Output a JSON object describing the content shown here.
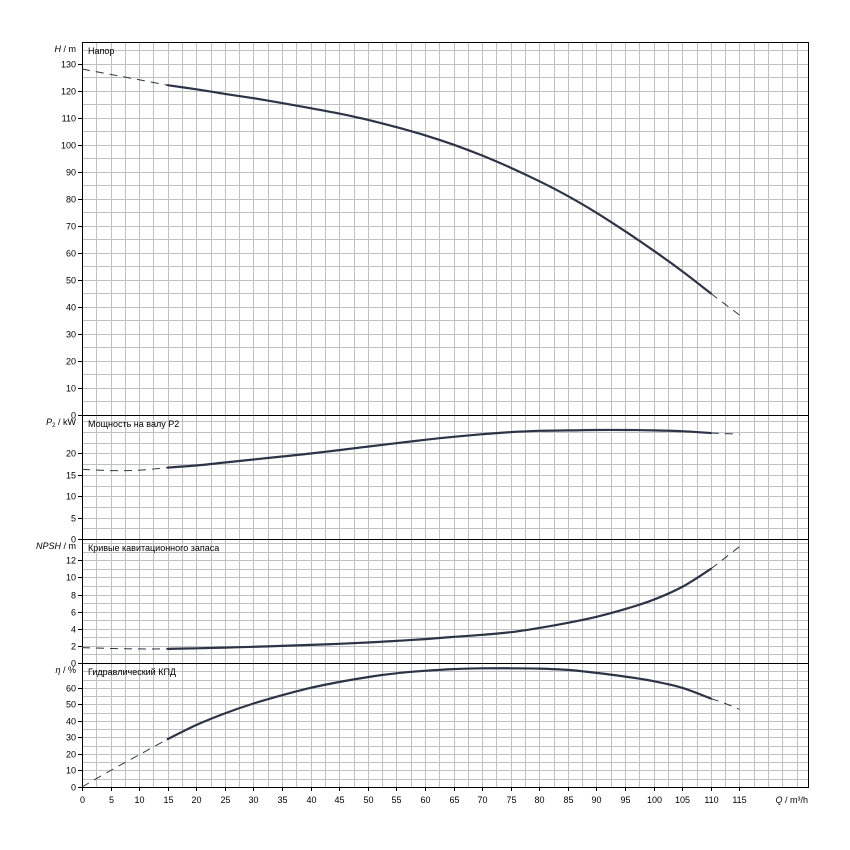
{
  "chart_data": [
    {
      "type": "line",
      "panel": "head",
      "title": "Напор",
      "ylabel_var": "H",
      "ylabel_unit": "m",
      "ylim": [
        0,
        138
      ],
      "yticks": [
        0,
        10,
        20,
        30,
        40,
        50,
        60,
        70,
        80,
        90,
        100,
        110,
        120,
        130
      ],
      "xlim": [
        0,
        127
      ],
      "series": [
        {
          "style": "solid",
          "x": [
            15,
            20,
            25,
            30,
            35,
            40,
            45,
            50,
            55,
            60,
            65,
            70,
            75,
            80,
            85,
            90,
            95,
            100,
            105,
            110
          ],
          "y": [
            122,
            120.5,
            118.8,
            117.2,
            115.4,
            113.5,
            111.5,
            109.2,
            106.5,
            103.5,
            100,
            96,
            91.5,
            86.5,
            81,
            74.8,
            68,
            60.8,
            53.2,
            45
          ]
        },
        {
          "style": "dashed",
          "x": [
            0,
            5,
            10,
            15
          ],
          "y": [
            128,
            126,
            124,
            122
          ]
        },
        {
          "style": "dashed",
          "x": [
            110,
            112.5,
            115
          ],
          "y": [
            45,
            41,
            37
          ]
        }
      ]
    },
    {
      "type": "line",
      "panel": "power",
      "title": "Мощность на валу P2",
      "ylabel_var": "P",
      "ylabel_sub": "2",
      "ylabel_unit": "kW",
      "ylim": [
        0,
        29
      ],
      "yticks": [
        0,
        5,
        10,
        15,
        20
      ],
      "xlim": [
        0,
        127
      ],
      "series": [
        {
          "style": "solid",
          "x": [
            15,
            20,
            25,
            30,
            35,
            40,
            45,
            50,
            55,
            60,
            65,
            70,
            75,
            80,
            85,
            90,
            95,
            100,
            105,
            110
          ],
          "y": [
            16.7,
            17.2,
            17.9,
            18.6,
            19.3,
            20,
            20.8,
            21.6,
            22.4,
            23.2,
            23.9,
            24.5,
            25,
            25.3,
            25.4,
            25.5,
            25.5,
            25.4,
            25.2,
            24.8
          ]
        },
        {
          "style": "dashed",
          "x": [
            0,
            5,
            10,
            15
          ],
          "y": [
            16.3,
            16,
            16.1,
            16.7
          ]
        },
        {
          "style": "dashed",
          "x": [
            110,
            115
          ],
          "y": [
            24.8,
            24.5
          ]
        }
      ]
    },
    {
      "type": "line",
      "panel": "npsh",
      "title": "Кривые кавитационного запаса",
      "ylabel_var": "NPSH",
      "ylabel_unit": "m",
      "ylim": [
        0,
        14.5
      ],
      "yticks": [
        0,
        2,
        4,
        6,
        8,
        10,
        12
      ],
      "xlim": [
        0,
        127
      ],
      "series": [
        {
          "style": "solid",
          "x": [
            15,
            20,
            25,
            30,
            35,
            40,
            45,
            50,
            55,
            60,
            65,
            70,
            75,
            80,
            85,
            90,
            95,
            100,
            105,
            110
          ],
          "y": [
            1.65,
            1.72,
            1.8,
            1.9,
            2,
            2.12,
            2.25,
            2.4,
            2.58,
            2.8,
            3.05,
            3.3,
            3.6,
            4.1,
            4.7,
            5.4,
            6.3,
            7.4,
            8.9,
            11
          ]
        },
        {
          "style": "dashed",
          "x": [
            0,
            5,
            10,
            15
          ],
          "y": [
            1.8,
            1.7,
            1.65,
            1.65
          ]
        },
        {
          "style": "dashed",
          "x": [
            110,
            112.5,
            115
          ],
          "y": [
            11,
            12.3,
            13.6
          ]
        }
      ]
    },
    {
      "type": "line",
      "panel": "efficiency",
      "title": "Гидравлический КПД",
      "ylabel_var": "η",
      "ylabel_unit": "%",
      "ylim": [
        0,
        75
      ],
      "yticks": [
        0,
        10,
        20,
        30,
        40,
        50,
        60
      ],
      "xlim": [
        0,
        127
      ],
      "xticks": [
        0,
        5,
        10,
        15,
        20,
        25,
        30,
        35,
        40,
        45,
        50,
        55,
        60,
        65,
        70,
        75,
        80,
        85,
        90,
        95,
        100,
        105,
        110,
        115
      ],
      "xlabel_var": "Q",
      "xlabel_unit": "m³/h",
      "series": [
        {
          "style": "solid",
          "x": [
            15,
            20,
            25,
            30,
            35,
            40,
            45,
            50,
            55,
            60,
            65,
            70,
            75,
            80,
            85,
            90,
            95,
            100,
            105,
            110
          ],
          "y": [
            29,
            37.5,
            44.5,
            50.5,
            55.5,
            60,
            63.5,
            66.5,
            68.8,
            70.3,
            71.3,
            71.8,
            71.8,
            71.6,
            70.8,
            69,
            66.8,
            64,
            60,
            53.5
          ]
        },
        {
          "style": "dashed",
          "x": [
            0,
            5,
            10,
            15
          ],
          "y": [
            0,
            10,
            19.5,
            29
          ]
        },
        {
          "style": "dashed",
          "x": [
            110,
            112.5,
            115
          ],
          "y": [
            53.5,
            50.5,
            47
          ]
        }
      ]
    }
  ]
}
